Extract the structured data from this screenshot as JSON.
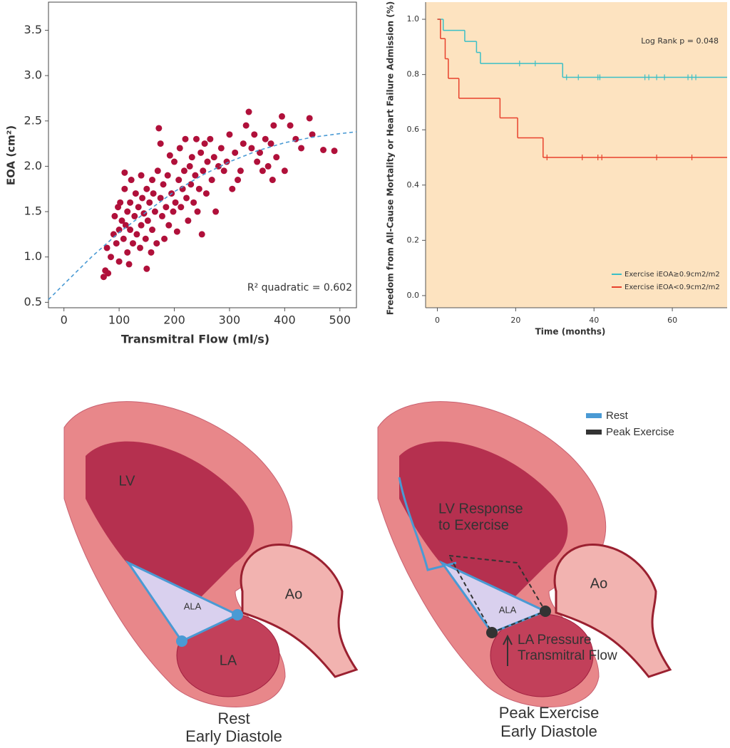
{
  "chart_data": [
    {
      "type": "scatter",
      "x_label": "Transmitral Flow (ml/s)",
      "y_label": "EOA (cm²)",
      "annotation": "R² quadratic = 0.602",
      "color": "#b0103a",
      "xlim": [
        -28,
        530
      ],
      "ylim": [
        0.44,
        3.81
      ],
      "xticks": [
        0,
        100,
        200,
        300,
        400,
        500
      ],
      "yticks": [
        0.5,
        {
          "value": 1,
          "label": "1.0"
        },
        1.5,
        {
          "value": 2,
          "label": "2.0"
        },
        2.5,
        {
          "value": 3,
          "label": "3.0"
        },
        3.5
      ],
      "x": [
        72,
        75,
        78,
        80,
        85,
        90,
        92,
        95,
        98,
        100,
        100,
        102,
        105,
        108,
        110,
        110,
        112,
        115,
        115,
        118,
        120,
        120,
        122,
        125,
        128,
        130,
        132,
        135,
        138,
        140,
        140,
        142,
        145,
        148,
        150,
        150,
        152,
        155,
        158,
        160,
        160,
        162,
        165,
        168,
        170,
        172,
        175,
        175,
        178,
        180,
        182,
        185,
        188,
        190,
        192,
        195,
        198,
        200,
        202,
        205,
        208,
        210,
        212,
        215,
        218,
        220,
        222,
        225,
        228,
        230,
        232,
        235,
        238,
        240,
        242,
        245,
        248,
        250,
        252,
        255,
        258,
        260,
        265,
        268,
        272,
        275,
        280,
        285,
        290,
        295,
        300,
        305,
        310,
        315,
        320,
        325,
        330,
        335,
        340,
        345,
        350,
        355,
        360,
        365,
        370,
        375,
        378,
        380,
        385,
        395,
        400,
        410,
        420,
        430,
        445,
        450,
        470,
        490
      ],
      "values": [
        0.78,
        0.85,
        1.1,
        0.82,
        1.0,
        1.25,
        1.45,
        1.15,
        1.55,
        1.3,
        0.95,
        1.6,
        1.4,
        1.2,
        1.75,
        1.93,
        1.35,
        1.05,
        1.5,
        0.92,
        1.3,
        1.6,
        1.85,
        1.15,
        1.45,
        1.7,
        1.25,
        1.55,
        1.1,
        1.35,
        1.9,
        1.65,
        1.48,
        1.2,
        1.75,
        0.87,
        1.4,
        1.6,
        1.05,
        1.85,
        1.3,
        1.7,
        1.5,
        1.15,
        1.95,
        2.42,
        1.65,
        2.25,
        1.45,
        1.8,
        1.2,
        1.55,
        1.9,
        1.35,
        2.12,
        1.7,
        1.5,
        2.05,
        1.6,
        1.28,
        1.85,
        2.2,
        1.55,
        1.75,
        1.95,
        2.3,
        1.65,
        1.4,
        2.0,
        1.8,
        2.1,
        1.6,
        1.9,
        2.3,
        1.5,
        1.75,
        2.15,
        1.25,
        1.95,
        2.25,
        1.7,
        2.05,
        2.3,
        1.85,
        2.1,
        1.5,
        2.0,
        2.2,
        1.95,
        2.05,
        2.35,
        1.75,
        2.15,
        1.85,
        1.95,
        2.25,
        2.45,
        2.6,
        2.2,
        2.35,
        2.05,
        2.15,
        1.95,
        2.3,
        2.0,
        2.25,
        1.85,
        2.45,
        2.1,
        2.55,
        1.95,
        2.45,
        2.3,
        2.2,
        2.53,
        2.35,
        2.18,
        2.17
      ],
      "trend_line": {
        "color": "#4a9ad4",
        "x": [
          -28,
          0,
          50,
          100,
          150,
          200,
          250,
          300,
          350,
          400,
          450,
          500,
          530
        ],
        "y": [
          0.53,
          0.7,
          1.0,
          1.27,
          1.5,
          1.72,
          1.9,
          2.05,
          2.17,
          2.26,
          2.32,
          2.36,
          2.38
        ]
      }
    },
    {
      "type": "km",
      "x_label": "Time (months)",
      "y_label": "Freedom from All-Cause Mortality or Heart Failure Admission (%)",
      "annotation": "Log Rank p = 0.048",
      "background": "#fde3c0",
      "legend": "lower right",
      "xlim": [
        -3,
        74
      ],
      "ylim": [
        -0.044,
        1.062
      ],
      "xticks": [
        0,
        20,
        40,
        60
      ],
      "yticks": [
        {
          "value": 0,
          "label": "0.0"
        },
        0.2,
        0.4,
        0.6,
        0.8,
        {
          "value": 1,
          "label": "1.0"
        }
      ],
      "series": [
        {
          "name": "Exercise iEOA≥0.9cm2/m2",
          "color": "#3bbfc6",
          "x": [
            0,
            1.5,
            7,
            10,
            11,
            32,
            74
          ],
          "values": [
            1.0,
            0.96,
            0.92,
            0.88,
            0.84,
            0.79,
            0.79
          ],
          "censored_x": [
            21,
            25,
            33,
            36,
            41,
            41.5,
            53,
            54,
            56,
            58,
            64,
            65,
            66
          ]
        },
        {
          "name": "Exercise iEOA<0.9cm2/m2",
          "color": "#e8412c",
          "x": [
            0,
            0.8,
            2,
            2.8,
            5.5,
            16,
            20.5,
            27,
            74
          ],
          "values": [
            1.0,
            0.93,
            0.857,
            0.786,
            0.714,
            0.643,
            0.571,
            0.5,
            0.5
          ],
          "censored_x": [
            28,
            37,
            41,
            42,
            56,
            65
          ]
        }
      ]
    }
  ],
  "diagrams": {
    "rest": {
      "lv": "LV",
      "ala": "ALA",
      "ao": "Ao",
      "la": "LA",
      "title": [
        "Rest",
        "Early Diastole"
      ]
    },
    "exercise": {
      "lv_response": [
        "LV Response",
        "to Exercise"
      ],
      "ala": "ALA",
      "ao": "Ao",
      "la_pressure": [
        "LA Pressure",
        "Transmitral Flow"
      ],
      "title": [
        "Peak Exercise",
        "Early Diastole"
      ]
    },
    "legend": [
      "Rest",
      "Peak Exercise"
    ]
  }
}
